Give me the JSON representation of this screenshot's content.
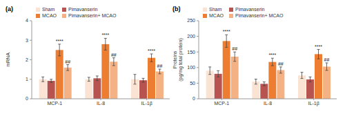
{
  "chart_data": [
    {
      "type": "bar",
      "title": "(a)",
      "y_label": "mRNA",
      "categories": [
        "MCP-1",
        "IL-8",
        "IL-1β"
      ],
      "series": [
        {
          "name": "Sham",
          "color": "#fbe3d3",
          "values": [
            1.0,
            1.0,
            1.0
          ],
          "errors": [
            0.12,
            0.1,
            0.25
          ]
        },
        {
          "name": "Pimavanserin",
          "color": "#b85450",
          "values": [
            0.92,
            1.05,
            0.95
          ],
          "errors": [
            0.08,
            0.12,
            0.1
          ]
        },
        {
          "name": "MCAO",
          "color": "#ed7d31",
          "values": [
            2.5,
            2.8,
            2.1
          ],
          "errors": [
            0.3,
            0.3,
            0.2
          ]
        },
        {
          "name": "Pimavanserin+ MCAO",
          "color": "#f4b183",
          "values": [
            1.6,
            1.9,
            1.4
          ],
          "errors": [
            0.15,
            0.2,
            0.12
          ]
        }
      ],
      "annotations": [
        {
          "series": "MCAO",
          "text": "****"
        },
        {
          "series": "Pimavanserin+ MCAO",
          "text": "##"
        }
      ],
      "ylim": [
        0,
        4
      ],
      "yticks": [
        0,
        1,
        2,
        3,
        4
      ],
      "grid": false,
      "legend": "upper left"
    },
    {
      "type": "bar",
      "title": "(b)",
      "y_label": "Proteins (pg/mg total protein)",
      "categories": [
        "MCP-1",
        "IL-8",
        "IL-1β"
      ],
      "series": [
        {
          "name": "Sham",
          "color": "#fbe3d3",
          "values": [
            90,
            55,
            75
          ],
          "errors": [
            12,
            8,
            10
          ]
        },
        {
          "name": "Pimavanserin",
          "color": "#b85450",
          "values": [
            80,
            48,
            62
          ],
          "errors": [
            10,
            6,
            8
          ]
        },
        {
          "name": "MCAO",
          "color": "#ed7d31",
          "values": [
            185,
            118,
            143
          ],
          "errors": [
            20,
            12,
            15
          ]
        },
        {
          "name": "Pimavanserin+ MCAO",
          "color": "#f4b183",
          "values": [
            135,
            92,
            103
          ],
          "errors": [
            15,
            10,
            12
          ]
        }
      ],
      "annotations": [
        {
          "series": "MCAO",
          "text": "****"
        },
        {
          "series": "Pimavanserin+ MCAO",
          "text": "##"
        }
      ],
      "ylim": [
        0,
        250
      ],
      "yticks": [
        0,
        50,
        100,
        150,
        200,
        250
      ],
      "grid": false,
      "legend": "upper left"
    }
  ]
}
